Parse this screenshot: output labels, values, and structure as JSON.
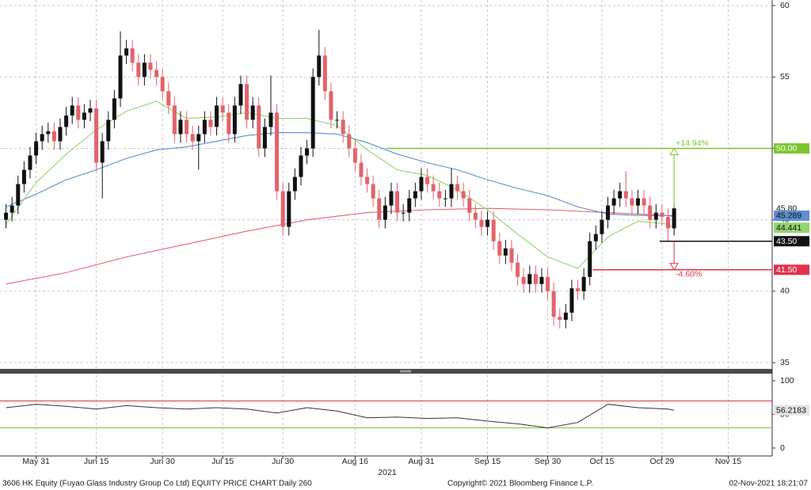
{
  "chart_data": [
    {
      "type": "candlestick",
      "xlim": [
        -1,
        127.3
      ],
      "ylim": [
        34.56,
        60.39
      ],
      "xlabel": "2021",
      "xticks": [
        {
          "value": 5,
          "label": "May 31"
        },
        {
          "value": 15,
          "label": "Jun 15"
        },
        {
          "value": 26,
          "label": "Jun 30"
        },
        {
          "value": 36,
          "label": "Jul 15"
        },
        {
          "value": 46,
          "label": "Jul 30"
        },
        {
          "value": 58,
          "label": "Aug 16"
        },
        {
          "value": 69,
          "label": "Aug 31"
        },
        {
          "value": 80,
          "label": "Sep 15"
        },
        {
          "value": 90,
          "label": "Sep 30"
        },
        {
          "value": 99,
          "label": "Oct 15"
        },
        {
          "value": 109,
          "label": "Oct 29"
        },
        {
          "value": 120,
          "label": "Nov 15"
        }
      ],
      "yticks": [
        35,
        40,
        45,
        50,
        55,
        60
      ],
      "grid": true,
      "up_color": "#111111",
      "down_color": "#e2636b",
      "open": [
        45,
        45.5,
        46,
        47.5,
        48.5,
        49.5,
        50.5,
        51,
        51.2,
        50.5,
        51.5,
        52.3,
        53,
        52,
        52.5,
        52.8,
        49,
        50.5,
        52,
        53.5,
        56.5,
        57,
        56,
        55,
        56,
        55.5,
        55,
        54,
        53,
        51,
        52,
        51,
        50.5,
        51,
        52,
        51.5,
        53,
        52.5,
        51,
        53,
        54.5,
        52,
        53,
        50,
        51.5,
        52.5,
        47,
        44.5,
        47,
        48,
        49.5,
        50,
        55,
        56.5,
        54,
        52,
        52,
        51,
        50,
        49,
        48,
        47.5,
        46.5,
        45,
        46,
        47,
        45.5,
        45.5,
        46.5,
        47,
        48,
        47.5,
        47,
        46.5,
        46.5,
        47.5,
        47,
        46.5,
        45.5,
        45,
        44.5,
        45,
        43.5,
        42.5,
        43,
        42,
        41,
        40.5,
        41.2,
        40.5,
        41,
        40,
        38.2,
        38,
        38.5,
        40.2,
        40,
        41,
        43.5,
        44,
        45,
        46,
        46.5,
        47,
        46.5,
        46,
        46.5,
        46,
        45,
        45.5,
        45.2,
        44.4
      ],
      "high": [
        46.1,
        46.6,
        48.1,
        49.1,
        50.1,
        51.1,
        51.6,
        51.8,
        51.8,
        52.1,
        52.9,
        53.6,
        53.6,
        53.1,
        53.4,
        53.4,
        51.1,
        52.6,
        54.1,
        58.2,
        57.6,
        57.6,
        56.6,
        56.6,
        56.6,
        56.1,
        55.6,
        54.6,
        53.6,
        52.6,
        52.6,
        51.6,
        51.6,
        52.6,
        52.6,
        53.6,
        53.6,
        53.1,
        53.6,
        55.1,
        55.1,
        53.6,
        53.6,
        52.1,
        55.1,
        53.1,
        47.6,
        47.6,
        48.6,
        50.1,
        50.6,
        55.6,
        58.3,
        57.1,
        54.6,
        52.6,
        52.6,
        51.6,
        50.6,
        49.6,
        48.6,
        48.1,
        47.1,
        46.6,
        47.6,
        47.6,
        46.1,
        47.1,
        47.6,
        48.6,
        48.6,
        48.1,
        47.6,
        47.1,
        48.6,
        48.1,
        47.6,
        47.1,
        46.1,
        45.6,
        45.6,
        45.6,
        44.1,
        43.6,
        43.6,
        42.6,
        41.6,
        41.8,
        41.8,
        41.6,
        41.6,
        40.6,
        38.8,
        39.1,
        40.8,
        40.8,
        41.6,
        44.1,
        44.6,
        45.6,
        46.6,
        47.1,
        47.6,
        48.4,
        47.1,
        47.1,
        47.1,
        46.6,
        46.1,
        46.1,
        45.8,
        46.1
      ],
      "low": [
        44.4,
        44.9,
        45.4,
        46.9,
        47.9,
        48.9,
        49.9,
        50.4,
        49.9,
        49.9,
        50.9,
        51.7,
        51.4,
        51.4,
        51.9,
        48.4,
        46.5,
        49.9,
        51.4,
        52.9,
        55.9,
        55.4,
        54.4,
        54.4,
        54.9,
        54.4,
        53.4,
        52.4,
        50.4,
        50.4,
        50.4,
        49.9,
        48.5,
        50.4,
        50.9,
        50.9,
        51.9,
        50.4,
        50.4,
        52.4,
        51.4,
        51.4,
        49.4,
        49.4,
        50.9,
        46.4,
        43.9,
        43.9,
        46.4,
        47.4,
        48.9,
        49.4,
        54.4,
        53.4,
        51.4,
        51.4,
        50.4,
        49.4,
        48.4,
        47.4,
        46.9,
        45.9,
        44.4,
        44.4,
        45.4,
        44.9,
        44.9,
        44.9,
        45.9,
        46.4,
        46.9,
        46.4,
        45.9,
        45.9,
        45.9,
        46.4,
        45.9,
        44.9,
        44.4,
        43.9,
        43.9,
        42.9,
        41.9,
        41.9,
        41.4,
        40.4,
        39.9,
        39.9,
        39.9,
        39.9,
        39.4,
        37.6,
        37.4,
        37.4,
        37.9,
        39.4,
        39.4,
        40.4,
        42.9,
        43.4,
        44.4,
        45.4,
        45.9,
        45.9,
        45.4,
        45.4,
        45.4,
        44.4,
        44.4,
        44.6,
        43.5,
        43.9
      ],
      "close": [
        45.5,
        46,
        47.5,
        48.5,
        49.5,
        50.5,
        51,
        51.2,
        50.5,
        51.5,
        52.3,
        53,
        52,
        52.5,
        52.8,
        49,
        50.5,
        52,
        53.5,
        56.5,
        57,
        56,
        55,
        56,
        55.5,
        55,
        54,
        53,
        51,
        52,
        51,
        50.5,
        51,
        52,
        51.5,
        53,
        52.5,
        51,
        53,
        54.5,
        52,
        53,
        50,
        51.5,
        52.5,
        47,
        44.5,
        47,
        48,
        49.5,
        50,
        55,
        56.5,
        54,
        52,
        52,
        51,
        50,
        49,
        48,
        47.5,
        46.5,
        45,
        46,
        47,
        45.5,
        45.5,
        46.5,
        47,
        48,
        47.5,
        47,
        46.5,
        46.5,
        47.5,
        47,
        46.5,
        45.5,
        45,
        44.5,
        45,
        43.5,
        42.5,
        43,
        42,
        41,
        40.5,
        41.2,
        40.5,
        41,
        40,
        38.2,
        38,
        38.5,
        40.2,
        40,
        41,
        43.5,
        44,
        45,
        46,
        46.5,
        47,
        46.5,
        46,
        46.5,
        46,
        45,
        45.5,
        45.2,
        44.4,
        45.8
      ],
      "last_close_label": "45.80",
      "moving_averages": [
        {
          "color": "#e0666e",
          "x": [
            0,
            10,
            20,
            30,
            40,
            45,
            50,
            60,
            70,
            80,
            90,
            100,
            110,
            111
          ],
          "values": [
            40.5,
            41.3,
            42.4,
            43.3,
            44.2,
            44.6,
            45,
            45.5,
            45.7,
            45.8,
            45.7,
            45.5,
            45.3,
            45.2
          ]
        },
        {
          "color": "#5b8fd0",
          "x": [
            0,
            5,
            10,
            15,
            20,
            25,
            30,
            35,
            40,
            45,
            50,
            55,
            60,
            65,
            70,
            75,
            80,
            85,
            90,
            95,
            100,
            105,
            110,
            111
          ],
          "values": [
            45.9,
            46.8,
            47.8,
            48.5,
            49.3,
            49.9,
            50.1,
            50.5,
            50.9,
            51.1,
            51.1,
            51,
            50.4,
            49.6,
            49,
            48.5,
            47.8,
            47.2,
            46.7,
            45.9,
            45.4,
            45.3,
            45.3,
            45.289
          ]
        },
        {
          "color": "#95d46e",
          "x": [
            0,
            5,
            10,
            15,
            20,
            25,
            30,
            35,
            40,
            45,
            50,
            55,
            60,
            65,
            70,
            75,
            80,
            85,
            90,
            95,
            100,
            105,
            110,
            111
          ],
          "values": [
            44.7,
            47.6,
            49.6,
            51.3,
            52.6,
            53.3,
            52.1,
            52.2,
            52.5,
            52.1,
            52.1,
            51.6,
            49.9,
            48.5,
            48.1,
            47.1,
            45.7,
            44,
            42.4,
            41.6,
            43.8,
            44.9,
            44.7,
            44.441
          ]
        }
      ],
      "levels": [
        {
          "value": 50,
          "label": "50.00",
          "color": "#7dc52e",
          "x_start": 63.3
        },
        {
          "value": 43.5,
          "label": "43.50",
          "color": "#111111",
          "x_start": 108.6
        },
        {
          "value": 41.5,
          "label": "41.50",
          "color": "#e0334a",
          "x_start": 97.5
        }
      ],
      "annotations": [
        {
          "text": "+14.94%",
          "color": "#7dc52e"
        },
        {
          "text": "-4.60%",
          "color": "#e0334a"
        }
      ]
    },
    {
      "type": "line",
      "xlim": [
        -1,
        127.3
      ],
      "ylim": [
        -11.8,
        108.2
      ],
      "yticks": [
        0,
        50,
        100
      ],
      "levels": [
        {
          "value": 70,
          "color": "#e0334a"
        },
        {
          "value": 30,
          "color": "#7dc52e"
        }
      ],
      "series": [
        {
          "color": "#333333",
          "x": [
            0,
            5,
            10,
            15,
            20,
            25,
            30,
            35,
            40,
            45,
            50,
            55,
            60,
            65,
            70,
            75,
            80,
            85,
            90,
            95,
            100,
            105,
            110,
            111
          ],
          "values": [
            60,
            65,
            62,
            58,
            63,
            60,
            58,
            60,
            58,
            52,
            60,
            55,
            45,
            46,
            44,
            45,
            40,
            36,
            30,
            38,
            65,
            60,
            58,
            56.2183
          ]
        }
      ]
    }
  ],
  "footer": {
    "left": "3606 HK Equity (Fuyao Glass Industry Group Co Ltd) EQUITY PRICE CHART  Daily 260",
    "center": "Copyright© 2021 Bloomberg Finance L.P.",
    "right": "02-Nov-2021 18:21:07"
  }
}
